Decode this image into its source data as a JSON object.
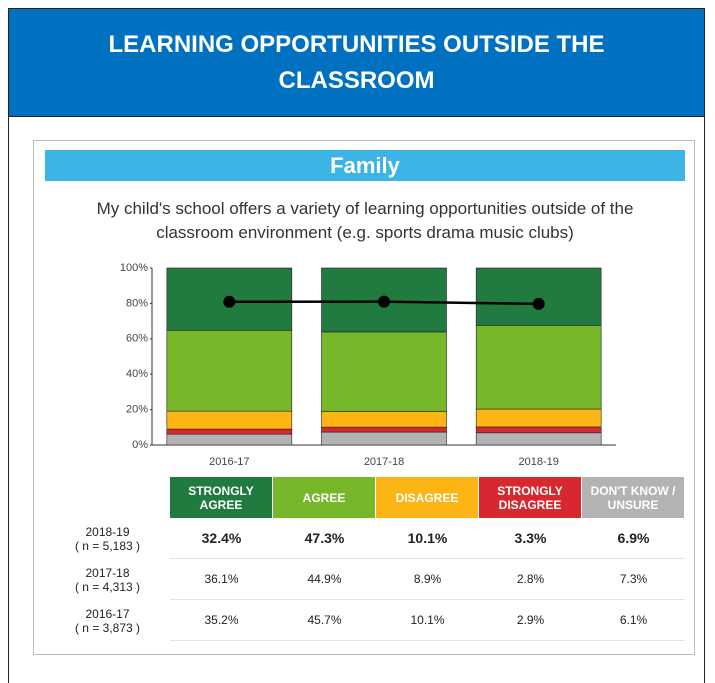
{
  "header": {
    "title": "LEARNING OPPORTUNITIES OUTSIDE THE CLASSROOM"
  },
  "chart_data": {
    "type": "stacked_bar",
    "section": "Family",
    "title": "My child's school offers a variety of learning opportunities outside of the classroom environment (e.g. sports drama music clubs)",
    "categories": [
      "2016-17",
      "2017-18",
      "2018-19"
    ],
    "row_notes": [
      "( n = 3,873 )",
      "( n = 4,313 )",
      "( n = 5,183 )"
    ],
    "series": [
      {
        "name": "STRONGLY AGREE",
        "color": "#217a3f",
        "values": [
          35.2,
          36.1,
          32.4
        ],
        "value_labels": [
          "35.2%",
          "36.1%",
          "32.4%"
        ]
      },
      {
        "name": "AGREE",
        "color": "#76b82a",
        "values": [
          45.7,
          44.9,
          47.3
        ],
        "value_labels": [
          "45.7%",
          "44.9%",
          "47.3%"
        ]
      },
      {
        "name": "DISAGREE",
        "color": "#fdb515",
        "values": [
          10.1,
          8.9,
          10.1
        ],
        "value_labels": [
          "10.1%",
          "8.9%",
          "10.1%"
        ]
      },
      {
        "name": "STRONGLY DISAGREE",
        "color": "#d7282f",
        "values": [
          2.9,
          2.8,
          3.3
        ],
        "value_labels": [
          "2.9%",
          "2.8%",
          "3.3%"
        ]
      },
      {
        "name": "DON'T KNOW / UNSURE",
        "color": "#b3b3b3",
        "values": [
          6.1,
          7.3,
          6.9
        ],
        "value_labels": [
          "6.1%",
          "7.3%",
          "6.9%"
        ]
      }
    ],
    "line": {
      "color": "#000000",
      "values": [
        80.9,
        81.0,
        79.7
      ]
    },
    "ylim": [
      0,
      100
    ],
    "yticks": [
      {
        "value": 0,
        "label": "0%"
      },
      {
        "value": 20,
        "label": "20%"
      },
      {
        "value": 40,
        "label": "40%"
      },
      {
        "value": 60,
        "label": "60%"
      },
      {
        "value": 80,
        "label": "80%"
      },
      {
        "value": 100,
        "label": "100%"
      }
    ]
  }
}
